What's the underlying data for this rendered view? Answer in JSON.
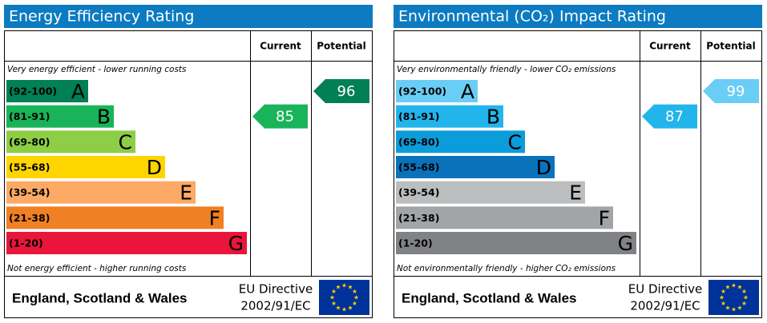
{
  "panels": [
    {
      "title": "Energy Efficiency Rating",
      "columns": [
        "Current",
        "Potential"
      ],
      "top_note": "Very energy efficient - lower running costs",
      "bottom_note": "Not energy efficient - higher running costs",
      "bands": [
        {
          "range": "(92-100)",
          "letter": "A",
          "color": "#008054"
        },
        {
          "range": "(81-91)",
          "letter": "B",
          "color": "#19b459"
        },
        {
          "range": "(69-80)",
          "letter": "C",
          "color": "#8dce46"
        },
        {
          "range": "(55-68)",
          "letter": "D",
          "color": "#ffd500"
        },
        {
          "range": "(39-54)",
          "letter": "E",
          "color": "#fcaa65"
        },
        {
          "range": "(21-38)",
          "letter": "F",
          "color": "#ef8023"
        },
        {
          "range": "(1-20)",
          "letter": "G",
          "color": "#e9153b"
        }
      ],
      "current": 85,
      "potential": 96,
      "footer": {
        "region": "England, Scotland & Wales",
        "directive": [
          "EU Directive",
          "2002/91/EC"
        ]
      }
    },
    {
      "title": "Environmental (CO₂) Impact Rating",
      "columns": [
        "Current",
        "Potential"
      ],
      "top_note": "Very environmentally friendly - lower CO₂ emissions",
      "bottom_note": "Not environmentally friendly - higher CO₂ emissions",
      "bands": [
        {
          "range": "(92-100)",
          "letter": "A",
          "color": "#6acdf5"
        },
        {
          "range": "(81-91)",
          "letter": "B",
          "color": "#22b5ec"
        },
        {
          "range": "(69-80)",
          "letter": "C",
          "color": "#0b9cda"
        },
        {
          "range": "(55-68)",
          "letter": "D",
          "color": "#0a72bb"
        },
        {
          "range": "(39-54)",
          "letter": "E",
          "color": "#bbbdbf"
        },
        {
          "range": "(21-38)",
          "letter": "F",
          "color": "#a2a4a6"
        },
        {
          "range": "(1-20)",
          "letter": "G",
          "color": "#808285"
        }
      ],
      "current": 87,
      "potential": 99,
      "footer": {
        "region": "England, Scotland & Wales",
        "directive": [
          "EU Directive",
          "2002/91/EC"
        ]
      }
    }
  ]
}
